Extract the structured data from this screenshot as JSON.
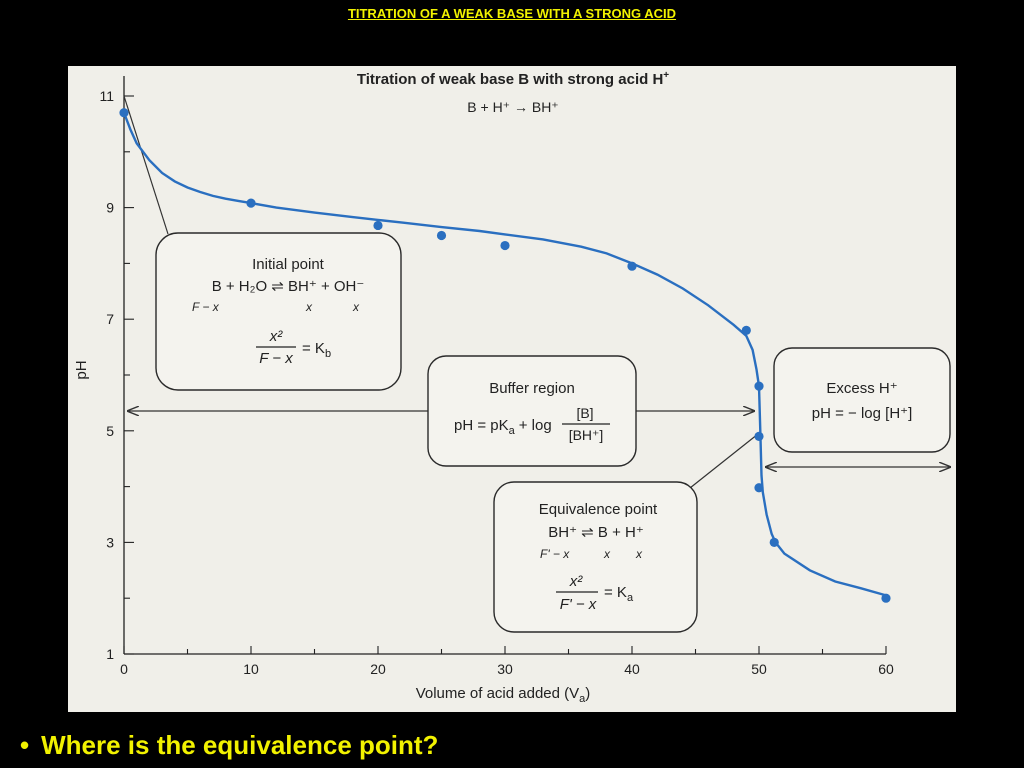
{
  "slide": {
    "title": "TITRATION OF A WEAK BASE WITH A STRONG ACID",
    "bullet": "Where is the equivalence point?"
  },
  "colors": {
    "background": "#000000",
    "title_text": "#f2f200",
    "curve": "#2a6fc0",
    "panel": "#f0efe9"
  },
  "chart_data": {
    "type": "line",
    "title": "Titration of weak base B with strong acid H",
    "title_sup": "+",
    "subtitle": "B + H⁺ → BH⁺",
    "xlabel": "Volume of acid added (V",
    "xlabel_sub": "a",
    "xlabel_end": ")",
    "ylabel": "pH",
    "xlim": [
      0,
      60
    ],
    "ylim": [
      1,
      11
    ],
    "xticks": [
      0,
      10,
      20,
      30,
      40,
      50,
      60
    ],
    "yticks": [
      1,
      3,
      5,
      7,
      9,
      11
    ],
    "curve": [
      [
        0,
        10.7
      ],
      [
        0.5,
        10.4
      ],
      [
        1,
        10.15
      ],
      [
        2,
        9.85
      ],
      [
        3,
        9.62
      ],
      [
        4,
        9.47
      ],
      [
        5,
        9.36
      ],
      [
        6,
        9.28
      ],
      [
        7,
        9.21
      ],
      [
        8,
        9.16
      ],
      [
        9,
        9.12
      ],
      [
        10,
        9.08
      ],
      [
        12,
        9.0
      ],
      [
        15,
        8.91
      ],
      [
        18,
        8.83
      ],
      [
        20,
        8.78
      ],
      [
        22,
        8.73
      ],
      [
        25,
        8.65
      ],
      [
        28,
        8.58
      ],
      [
        30,
        8.52
      ],
      [
        33,
        8.43
      ],
      [
        36,
        8.3
      ],
      [
        38,
        8.18
      ],
      [
        40,
        8.0
      ],
      [
        42,
        7.8
      ],
      [
        44,
        7.55
      ],
      [
        46,
        7.25
      ],
      [
        48,
        6.9
      ],
      [
        49,
        6.7
      ],
      [
        49.5,
        6.45
      ],
      [
        49.8,
        6.1
      ],
      [
        50,
        5.8
      ],
      [
        50.1,
        5.0
      ],
      [
        50.2,
        4.2
      ],
      [
        50.3,
        3.9
      ],
      [
        50.6,
        3.5
      ],
      [
        51,
        3.15
      ],
      [
        51.3,
        3.0
      ],
      [
        52,
        2.8
      ],
      [
        54,
        2.5
      ],
      [
        56,
        2.3
      ],
      [
        58,
        2.18
      ],
      [
        60,
        2.05
      ]
    ],
    "points": [
      [
        0,
        10.7
      ],
      [
        10,
        9.08
      ],
      [
        20,
        8.68
      ],
      [
        25,
        8.5
      ],
      [
        30,
        8.32
      ],
      [
        40,
        7.95
      ],
      [
        49,
        6.8
      ],
      [
        50,
        5.8
      ],
      [
        50,
        4.9
      ],
      [
        50,
        3.98
      ],
      [
        51.2,
        3.0
      ],
      [
        60,
        2.0
      ]
    ],
    "annotations": [
      {
        "id": "initial",
        "heading": "Initial point",
        "lines": [
          "B + H₂O ⇌ BH⁺ + OH⁻"
        ],
        "italic": [
          "F − x",
          "x",
          "x"
        ],
        "frac_num": "x²",
        "frac_den": "F − x",
        "frac_rhs": "= K",
        "frac_rhs_sub": "b"
      },
      {
        "id": "buffer",
        "heading": "Buffer region",
        "eq_lhs": "pH = pK",
        "eq_lhs_sub": "a",
        "eq_mid": "+ log",
        "frac_num": "[B]",
        "frac_den": "[BH⁺]"
      },
      {
        "id": "excess",
        "heading": "Excess H⁺",
        "eq": "pH = − log [H⁺]"
      },
      {
        "id": "equivalence",
        "heading": "Equivalence point",
        "lines": [
          "BH⁺ ⇌ B + H⁺"
        ],
        "italic": [
          "F' − x",
          "x",
          "x"
        ],
        "frac_num": "x²",
        "frac_den": "F' − x",
        "frac_rhs": "= K",
        "frac_rhs_sub": "a"
      }
    ],
    "grid": false,
    "legend": "none"
  }
}
